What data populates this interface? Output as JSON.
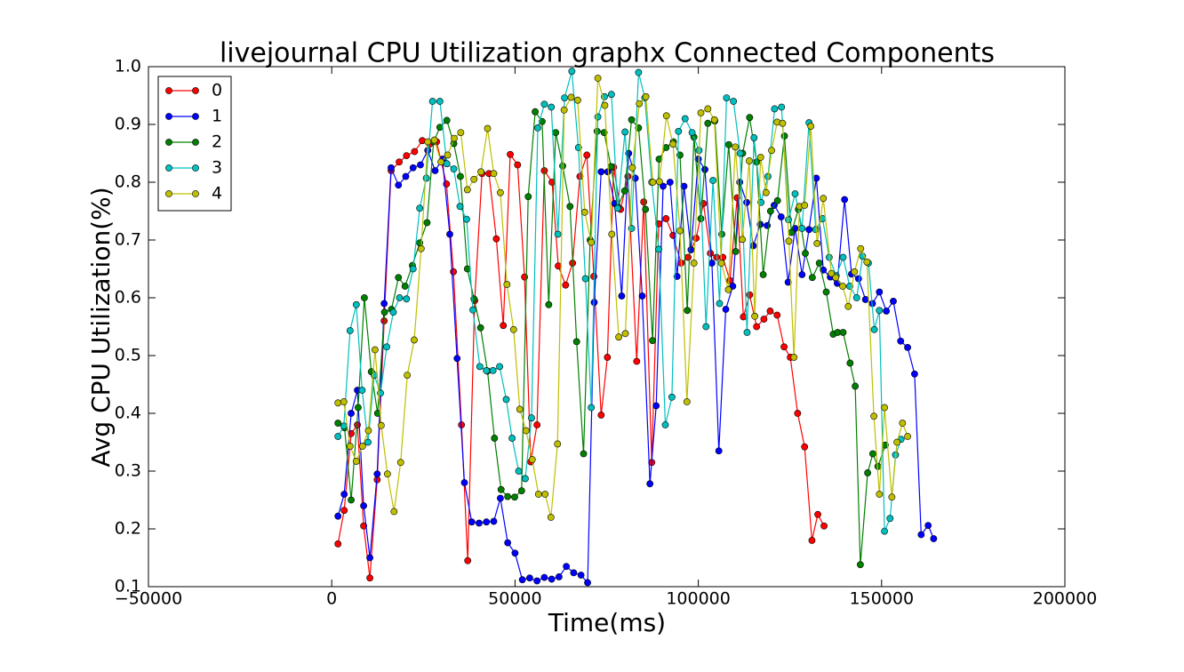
{
  "chart_data": {
    "type": "line",
    "title": "livejournal CPU Utilization graphx Connected Components",
    "xlabel": "Time(ms)",
    "ylabel": "Avg CPU Utilization(%)",
    "xlim": [
      -50000,
      200000
    ],
    "ylim": [
      0.1,
      1.0
    ],
    "xticks": [
      {
        "value": -50000,
        "label": "−50000"
      },
      0,
      50000,
      100000,
      150000,
      200000
    ],
    "yticks": [
      0.1,
      0.2,
      0.3,
      0.4,
      0.5,
      0.6,
      0.7,
      0.8,
      0.9,
      {
        "value": 1.0,
        "label": "1.0"
      }
    ],
    "legend": "upper left",
    "series": [
      {
        "name": "0",
        "color": "#ff0000",
        "x": [
          1700,
          3400,
          5300,
          7000,
          8700,
          10400,
          12400,
          14300,
          16200,
          18400,
          20400,
          22600,
          24700,
          26700,
          28600,
          31300,
          33200,
          35400,
          37100,
          39000,
          41000,
          42900,
          44900,
          46800,
          48700,
          50700,
          52600,
          54300,
          56000,
          58000,
          60100,
          61800,
          63800,
          65700,
          67700,
          69600,
          71500,
          73500,
          75200,
          76900,
          78800,
          80800,
          83200,
          85100,
          87300,
          89200,
          91200,
          93100,
          95300,
          97200,
          99400,
          101400,
          103300,
          105000,
          106700,
          108600,
          110600,
          112300,
          114000,
          115900,
          117900,
          119600,
          121500,
          123400,
          125100,
          127100,
          129000,
          131000,
          132600,
          134300
        ],
        "values": [
          0.174,
          0.232,
          0.365,
          0.38,
          0.205,
          0.115,
          0.285,
          0.56,
          0.82,
          0.835,
          0.846,
          0.853,
          0.872,
          0.866,
          0.87,
          0.797,
          0.645,
          0.38,
          0.145,
          0.595,
          0.815,
          0.815,
          0.702,
          0.552,
          0.848,
          0.83,
          0.636,
          0.316,
          0.38,
          0.82,
          0.8,
          0.655,
          0.622,
          0.66,
          0.81,
          0.847,
          0.637,
          0.397,
          0.497,
          0.826,
          0.753,
          0.81,
          0.49,
          0.766,
          0.315,
          0.728,
          0.737,
          0.708,
          0.66,
          0.67,
          0.703,
          0.763,
          0.677,
          0.67,
          0.67,
          0.63,
          0.773,
          0.567,
          0.605,
          0.55,
          0.563,
          0.577,
          0.57,
          0.515,
          0.497,
          0.4,
          0.342,
          0.18,
          0.225,
          0.205
        ]
      },
      {
        "name": "1",
        "color": "#0000ff",
        "x": [
          1700,
          3400,
          5300,
          7000,
          8700,
          10400,
          12400,
          14300,
          16200,
          18200,
          20200,
          22200,
          24200,
          26200,
          28200,
          30200,
          32200,
          34200,
          36200,
          38200,
          40200,
          42200,
          44200,
          46000,
          48000,
          50000,
          52000,
          54000,
          56000,
          58000,
          60000,
          62000,
          64000,
          66000,
          68000,
          69800,
          71600,
          73500,
          75300,
          77200,
          79100,
          81000,
          82800,
          84700,
          86800,
          88500,
          90400,
          92300,
          94200,
          96100,
          98000,
          100000,
          101800,
          103700,
          105600,
          107500,
          109400,
          111300,
          113200,
          115000,
          116900,
          118800,
          120700,
          122600,
          124500,
          126400,
          128300,
          130200,
          132200,
          134100,
          136000,
          137900,
          139900,
          141800,
          143700,
          145600,
          147500,
          149400,
          151300,
          153200,
          155200,
          157100,
          159000,
          160800,
          162700,
          164200
        ],
        "values": [
          0.222,
          0.26,
          0.4,
          0.44,
          0.24,
          0.15,
          0.295,
          0.59,
          0.825,
          0.795,
          0.81,
          0.825,
          0.83,
          0.855,
          0.82,
          0.84,
          0.71,
          0.495,
          0.28,
          0.212,
          0.21,
          0.212,
          0.213,
          0.253,
          0.176,
          0.158,
          0.112,
          0.115,
          0.11,
          0.116,
          0.113,
          0.117,
          0.135,
          0.124,
          0.12,
          0.107,
          0.592,
          0.818,
          0.818,
          0.763,
          0.603,
          0.85,
          0.807,
          0.603,
          0.278,
          0.413,
          0.793,
          0.8,
          0.637,
          0.793,
          0.683,
          0.84,
          0.822,
          0.66,
          0.335,
          0.58,
          0.62,
          0.8,
          0.765,
          0.69,
          0.727,
          0.725,
          0.76,
          0.74,
          0.627,
          0.72,
          0.64,
          0.718,
          0.807,
          0.648,
          0.636,
          0.625,
          0.77,
          0.641,
          0.633,
          0.597,
          0.59,
          0.61,
          0.577,
          0.594,
          0.525,
          0.514,
          0.468,
          0.19,
          0.206,
          0.183
        ]
      },
      {
        "name": "2",
        "color": "#008000",
        "x": [
          1700,
          3500,
          5300,
          7200,
          8900,
          10800,
          12500,
          14400,
          16300,
          18200,
          20000,
          22000,
          24000,
          26000,
          27800,
          29500,
          31400,
          33300,
          35100,
          37000,
          38800,
          40600,
          42500,
          44400,
          46200,
          48000,
          49900,
          51800,
          53600,
          55500,
          57400,
          59200,
          61100,
          63000,
          65000,
          66800,
          68700,
          70500,
          72400,
          74300,
          76200,
          78000,
          79900,
          81800,
          83700,
          85600,
          87500,
          89300,
          91200,
          93200,
          95000,
          97000,
          98800,
          100700,
          102600,
          104500,
          106400,
          108300,
          110200,
          112100,
          114000,
          115900,
          117700,
          119700,
          121600,
          123500,
          125400,
          127300,
          129200,
          131100,
          133000,
          134900,
          136800,
          138000,
          139500,
          141400,
          142800,
          144200,
          146200,
          147600,
          149000,
          151000
        ],
        "values": [
          0.383,
          0.375,
          0.25,
          0.41,
          0.6,
          0.472,
          0.4,
          0.575,
          0.58,
          0.635,
          0.62,
          0.656,
          0.695,
          0.73,
          0.87,
          0.895,
          0.907,
          0.867,
          0.81,
          0.65,
          0.598,
          0.548,
          0.473,
          0.357,
          0.268,
          0.256,
          0.255,
          0.266,
          0.775,
          0.922,
          0.905,
          0.588,
          0.886,
          0.828,
          0.758,
          0.524,
          0.33,
          0.7,
          0.888,
          0.886,
          0.827,
          0.757,
          0.785,
          0.908,
          0.894,
          0.753,
          0.526,
          0.84,
          0.86,
          0.87,
          0.847,
          0.578,
          0.878,
          0.737,
          0.902,
          0.906,
          0.71,
          0.865,
          0.68,
          0.85,
          0.912,
          0.835,
          0.64,
          0.75,
          0.768,
          0.88,
          0.713,
          0.753,
          0.677,
          0.635,
          0.66,
          0.61,
          0.537,
          0.54,
          0.54,
          0.487,
          0.447,
          0.138,
          0.297,
          0.33,
          0.308,
          0.345
        ]
      },
      {
        "name": "3",
        "color": "#00bfbf",
        "x": [
          1700,
          3300,
          5000,
          6700,
          8300,
          9900,
          11600,
          13300,
          15000,
          16800,
          18500,
          20400,
          22200,
          24000,
          25800,
          27500,
          29500,
          31400,
          33300,
          35000,
          36800,
          38500,
          40400,
          42200,
          44000,
          45800,
          47600,
          49200,
          51000,
          52800,
          54500,
          56200,
          58000,
          59900,
          61700,
          63500,
          65500,
          67300,
          69200,
          70800,
          72600,
          74400,
          76300,
          78000,
          80000,
          81800,
          83700,
          85400,
          87300,
          89200,
          91000,
          92800,
          94600,
          96400,
          98300,
          100200,
          102100,
          104000,
          105800,
          107700,
          109600,
          111400,
          113300,
          115200,
          117100,
          119000,
          120800,
          122700,
          124600,
          126400,
          128300,
          130200,
          132000,
          133900,
          135700,
          137600,
          139500,
          141300,
          143200,
          144800,
          146400,
          148000,
          149400,
          150800,
          152300,
          153800,
          155300
        ],
        "values": [
          0.36,
          0.378,
          0.543,
          0.588,
          0.44,
          0.35,
          0.466,
          0.435,
          0.515,
          0.575,
          0.6,
          0.598,
          0.65,
          0.755,
          0.807,
          0.94,
          0.94,
          0.832,
          0.823,
          0.758,
          0.736,
          0.579,
          0.481,
          0.474,
          0.474,
          0.481,
          0.424,
          0.357,
          0.3,
          0.287,
          0.392,
          0.894,
          0.935,
          0.93,
          0.71,
          0.946,
          0.992,
          0.86,
          0.633,
          0.41,
          0.913,
          0.948,
          0.952,
          0.755,
          0.887,
          0.72,
          0.99,
          0.946,
          0.8,
          0.684,
          0.38,
          0.428,
          0.888,
          0.91,
          0.886,
          0.855,
          0.55,
          0.803,
          0.59,
          0.946,
          0.94,
          0.85,
          0.54,
          0.877,
          0.765,
          0.81,
          0.927,
          0.93,
          0.735,
          0.78,
          0.72,
          0.903,
          0.718,
          0.737,
          0.67,
          0.638,
          0.67,
          0.62,
          0.6,
          0.672,
          0.66,
          0.545,
          0.578,
          0.196,
          0.218,
          0.328,
          0.355
        ]
      },
      {
        "name": "4",
        "color": "#bfbf00",
        "x": [
          1700,
          3300,
          5000,
          6700,
          8400,
          10000,
          11800,
          13500,
          15200,
          17000,
          18800,
          20600,
          22500,
          24400,
          26200,
          28000,
          29800,
          31600,
          33400,
          35200,
          37000,
          38800,
          40700,
          42500,
          44200,
          46000,
          47800,
          49600,
          51300,
          53000,
          54700,
          56400,
          58200,
          59800,
          61600,
          63400,
          65300,
          67100,
          69000,
          70800,
          72600,
          74500,
          76400,
          78300,
          80100,
          82000,
          83900,
          85700,
          87600,
          89400,
          91300,
          93100,
          95000,
          96900,
          98800,
          100700,
          102600,
          104400,
          106300,
          108200,
          110100,
          112000,
          113900,
          115400,
          117000,
          118500,
          120000,
          121500,
          123000,
          124700,
          126100,
          127600,
          129000,
          130700,
          132400,
          134100,
          136300,
          137500,
          139400,
          140900,
          142600,
          144300,
          146000,
          147900,
          149400,
          150800,
          152800,
          154200,
          155700,
          157100
        ],
        "values": [
          0.418,
          0.42,
          0.343,
          0.317,
          0.343,
          0.37,
          0.51,
          0.379,
          0.295,
          0.23,
          0.315,
          0.466,
          0.527,
          0.685,
          0.87,
          0.873,
          0.835,
          0.847,
          0.876,
          0.886,
          0.787,
          0.805,
          0.818,
          0.893,
          0.815,
          0.782,
          0.623,
          0.545,
          0.407,
          0.37,
          0.32,
          0.26,
          0.26,
          0.22,
          0.347,
          0.925,
          0.947,
          0.942,
          0.748,
          0.696,
          0.98,
          0.933,
          0.71,
          0.532,
          0.538,
          0.825,
          0.936,
          0.948,
          0.8,
          0.801,
          0.915,
          0.866,
          0.716,
          0.42,
          0.66,
          0.92,
          0.927,
          0.908,
          0.66,
          0.614,
          0.861,
          0.701,
          0.837,
          0.568,
          0.843,
          0.782,
          0.855,
          0.904,
          0.902,
          0.698,
          0.497,
          0.758,
          0.76,
          0.897,
          0.694,
          0.772,
          0.642,
          0.635,
          0.62,
          0.585,
          0.645,
          0.685,
          0.662,
          0.395,
          0.26,
          0.41,
          0.255,
          0.35,
          0.383,
          0.36
        ]
      }
    ]
  }
}
